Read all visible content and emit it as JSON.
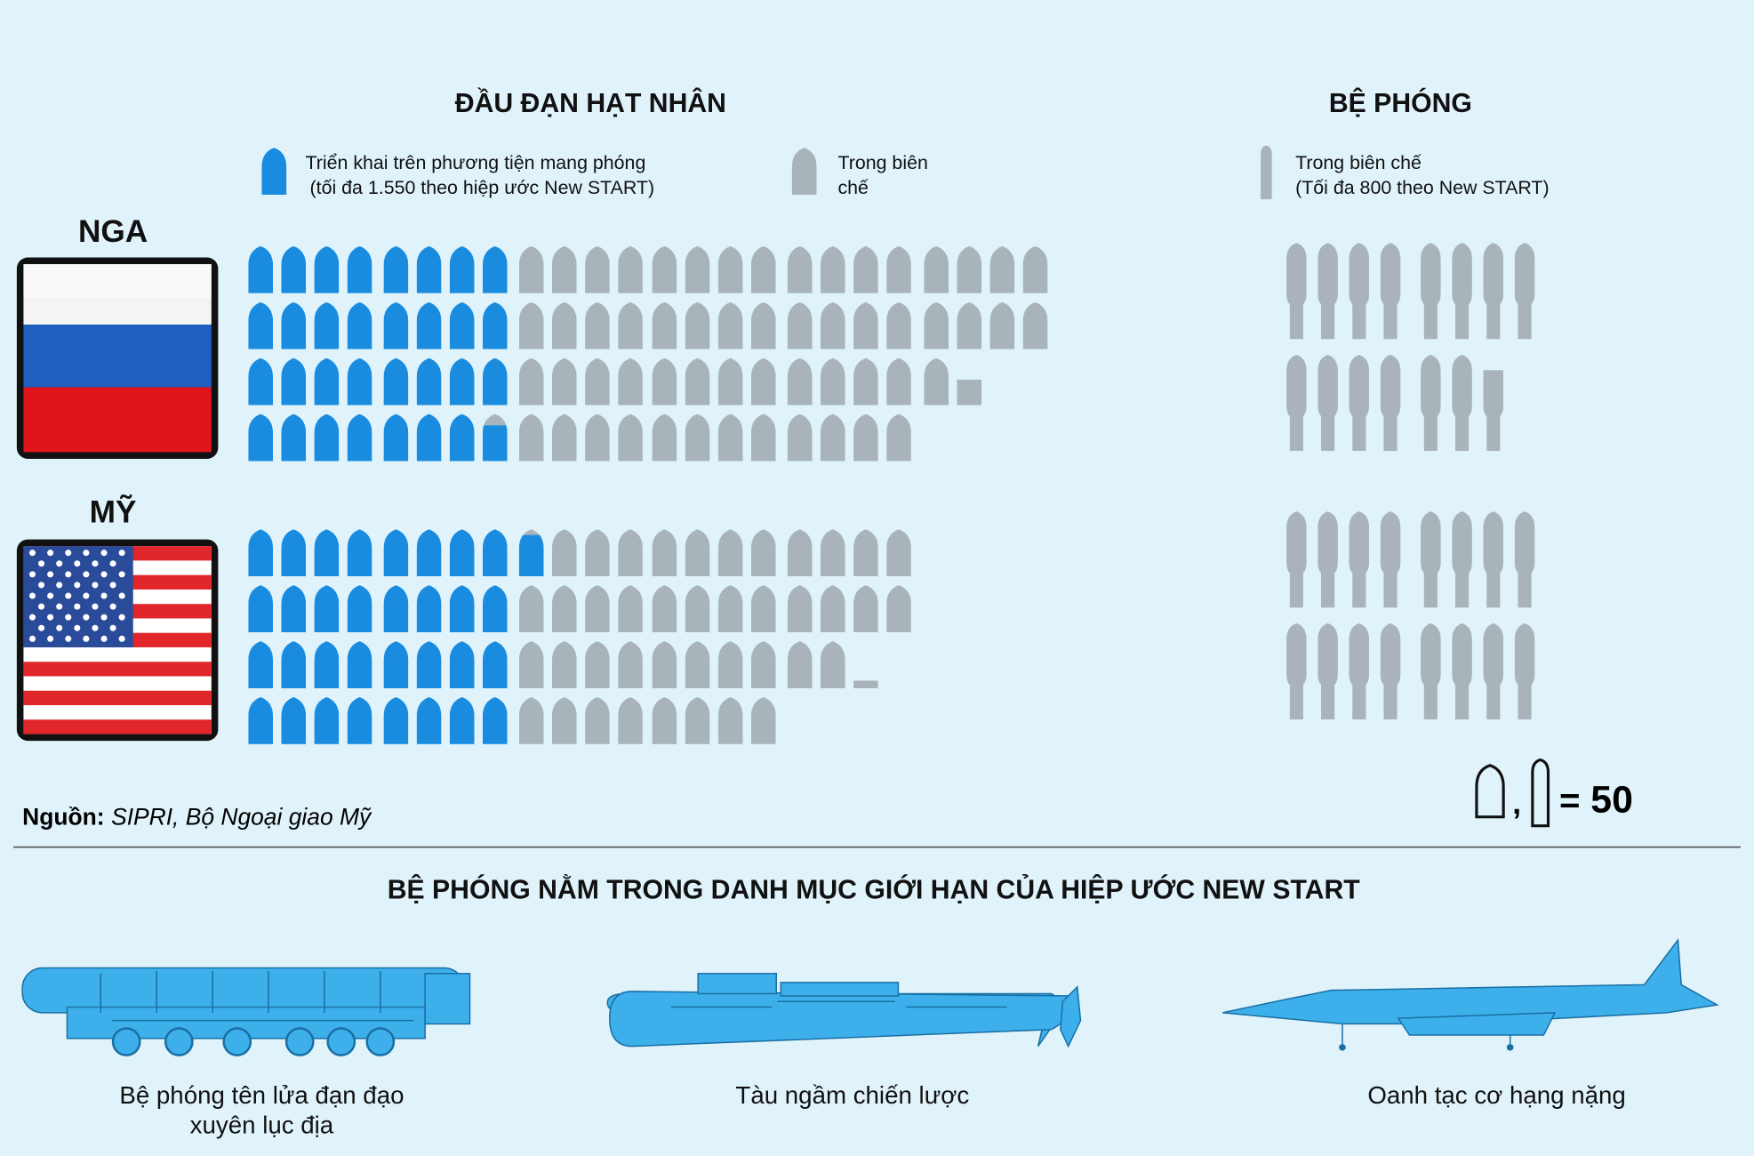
{
  "headings": {
    "warheads": "ĐẦU ĐẠN HẠT NHÂN",
    "launchers": "BỆ PHÓNG"
  },
  "legend": {
    "deployed_warheads": [
      "Triển khai trên phương tiện mang phóng",
      "(tối đa 1.550 theo hiệp ước New START)"
    ],
    "stockpile_warheads": [
      "Trong biên",
      "chế"
    ],
    "launchers": [
      "Trong biên chế",
      "(Tối đa 800 theo New START)"
    ],
    "separator": ",",
    "equals": "=",
    "unit": 50
  },
  "countries": [
    {
      "name": "NGA",
      "warheads_deployed": 1588,
      "warheads_other": 2889,
      "launchers": 742
    },
    {
      "name": "MỸ",
      "warheads_deployed": 1644,
      "warheads_other": 2064,
      "launchers": 800
    }
  ],
  "colors": {
    "deployed": "#1a8ce0",
    "stockpile": "#a8b3ba"
  },
  "source": {
    "label": "Nguồn:",
    "text": "SIPRI, Bộ Ngoại giao Mỹ"
  },
  "section": {
    "title": "BỆ PHÓNG NẰM TRONG DANH MỤC GIỚI HẠN CỦA HIỆP ƯỚC NEW START",
    "items": [
      [
        "Bệ phóng tên lửa đạn đạo",
        "xuyên lục địa"
      ],
      [
        "Tàu ngầm chiến lược"
      ],
      [
        "Oanh tạc cơ hạng nặng"
      ]
    ]
  }
}
